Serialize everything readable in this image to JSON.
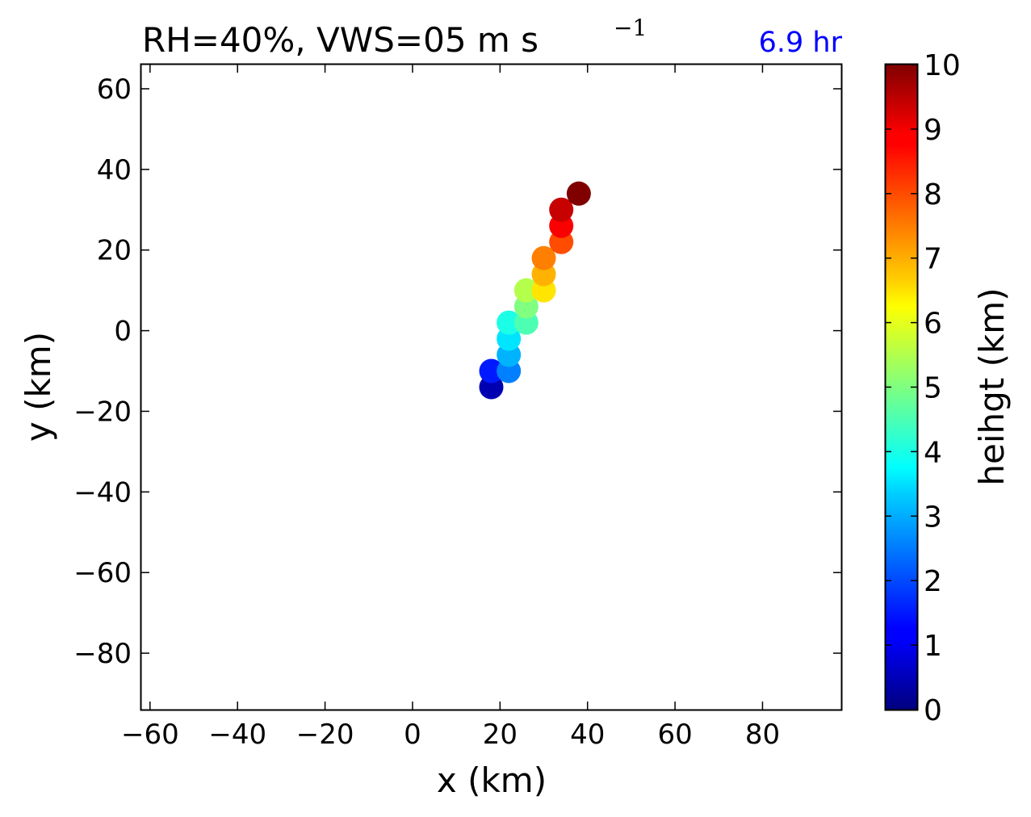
{
  "chart_data": {
    "type": "scatter",
    "title": {
      "main": "RH=40%, VWS=05 m s",
      "superscript": "−1"
    },
    "time_label": "6.9 hr",
    "xlabel": "x (km)",
    "ylabel": "y (km)",
    "xlim": [
      -62,
      98
    ],
    "ylim": [
      -94,
      66
    ],
    "xticks": [
      -60,
      -40,
      -20,
      0,
      20,
      40,
      60,
      80
    ],
    "yticks": [
      60,
      40,
      20,
      0,
      -20,
      -40,
      -60,
      -80
    ],
    "grid": false,
    "colorbar": {
      "label": "heihgt (km)",
      "range": [
        0,
        10
      ],
      "ticks": [
        0,
        1,
        2,
        3,
        4,
        5,
        6,
        7,
        8,
        9,
        10
      ],
      "colormap": "jet"
    },
    "points": [
      {
        "x": 18,
        "y": -14,
        "height": 0.5
      },
      {
        "x": 18,
        "y": -10,
        "height": 1.5
      },
      {
        "x": 22,
        "y": -10,
        "height": 2.5
      },
      {
        "x": 22,
        "y": -6,
        "height": 3.0
      },
      {
        "x": 22,
        "y": -2,
        "height": 3.5
      },
      {
        "x": 22,
        "y": 2,
        "height": 4.0
      },
      {
        "x": 26,
        "y": 2,
        "height": 4.5
      },
      {
        "x": 26,
        "y": 6,
        "height": 5.0
      },
      {
        "x": 26,
        "y": 10,
        "height": 5.5
      },
      {
        "x": 30,
        "y": 10,
        "height": 6.5
      },
      {
        "x": 30,
        "y": 14,
        "height": 7.0
      },
      {
        "x": 30,
        "y": 18,
        "height": 7.5
      },
      {
        "x": 34,
        "y": 22,
        "height": 8.0
      },
      {
        "x": 34,
        "y": 26,
        "height": 8.8
      },
      {
        "x": 34,
        "y": 30,
        "height": 9.3
      },
      {
        "x": 38,
        "y": 34,
        "height": 10.0
      }
    ]
  }
}
